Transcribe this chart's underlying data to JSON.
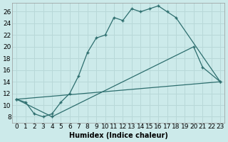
{
  "xlabel": "Humidex (Indice chaleur)",
  "bg_color": "#cceaea",
  "grid_color": "#b8d8d8",
  "line_color": "#2d6e6e",
  "xlim": [
    -0.5,
    23.5
  ],
  "ylim": [
    7.0,
    27.5
  ],
  "yticks": [
    8,
    10,
    12,
    14,
    16,
    18,
    20,
    22,
    24,
    26
  ],
  "xticks": [
    0,
    1,
    2,
    3,
    4,
    5,
    6,
    7,
    8,
    9,
    10,
    11,
    12,
    13,
    14,
    15,
    16,
    17,
    18,
    19,
    20,
    21,
    22,
    23
  ],
  "line1_x": [
    0,
    1,
    2,
    3,
    4,
    5,
    6,
    7,
    8,
    9,
    10,
    11,
    12,
    13,
    14,
    15,
    16,
    17,
    18,
    23
  ],
  "line1_y": [
    11,
    10.5,
    8.5,
    8.0,
    8.5,
    10.5,
    12.0,
    15.0,
    19.0,
    21.5,
    22.0,
    25.0,
    24.5,
    26.5,
    26.0,
    26.5,
    27.0,
    26.0,
    25.0,
    14.0
  ],
  "line2_x": [
    0,
    4,
    20,
    21,
    23
  ],
  "line2_y": [
    11,
    8,
    20,
    16.5,
    14
  ],
  "line3_x": [
    0,
    23
  ],
  "line3_y": [
    11,
    14
  ],
  "fontsize_xlabel": 7,
  "fontsize_ticks": 6.5
}
